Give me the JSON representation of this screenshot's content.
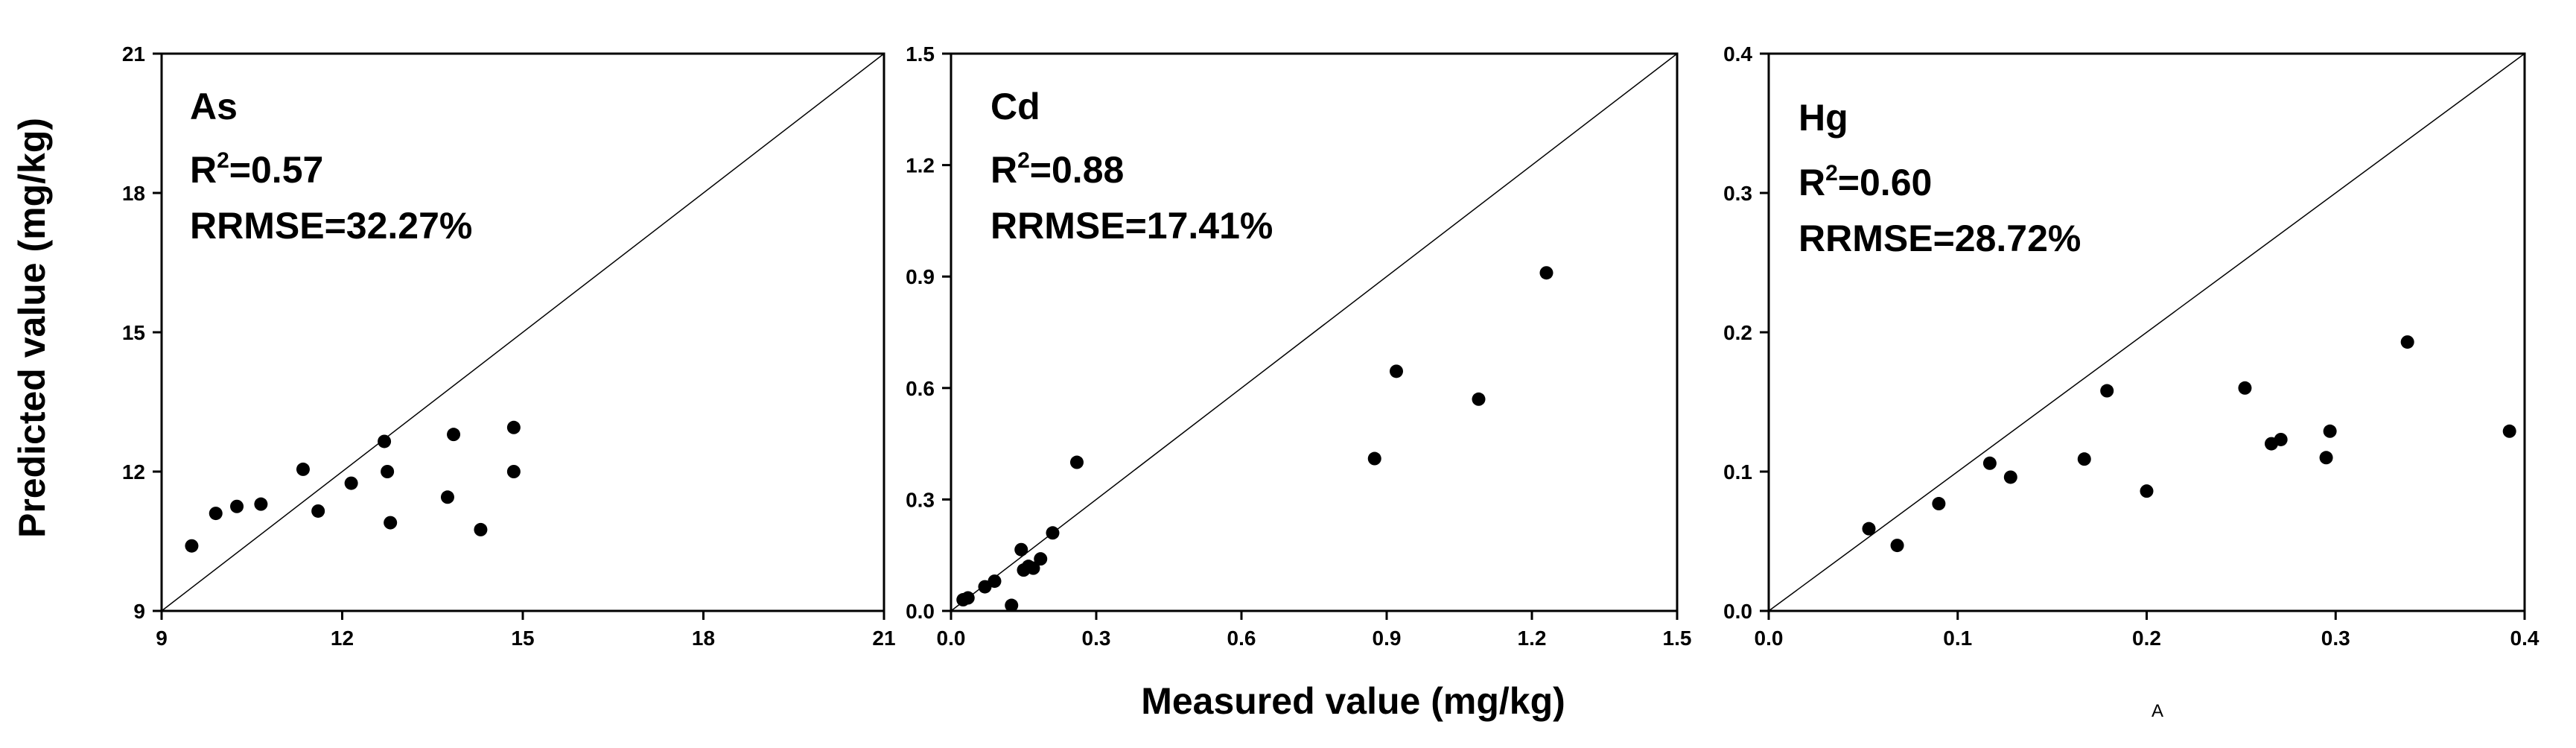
{
  "chart_data": [
    {
      "type": "scatter",
      "title": "As",
      "r2_label": "R",
      "r2_exp": "2",
      "r2_value": "=0.57",
      "rrmse": "RRMSE=32.27%",
      "xlim": [
        9,
        21
      ],
      "ylim": [
        9,
        21
      ],
      "xticks": [
        "9",
        "12",
        "15",
        "18",
        "21"
      ],
      "yticks": [
        "9",
        "12",
        "15",
        "18",
        "21"
      ],
      "points": [
        {
          "x": 9.5,
          "y": 10.4
        },
        {
          "x": 9.9,
          "y": 11.1
        },
        {
          "x": 10.25,
          "y": 11.25
        },
        {
          "x": 10.65,
          "y": 11.3
        },
        {
          "x": 11.35,
          "y": 12.05
        },
        {
          "x": 11.6,
          "y": 11.15
        },
        {
          "x": 12.15,
          "y": 11.75
        },
        {
          "x": 12.7,
          "y": 12.65
        },
        {
          "x": 12.75,
          "y": 12.0
        },
        {
          "x": 12.8,
          "y": 10.9
        },
        {
          "x": 13.75,
          "y": 11.45
        },
        {
          "x": 13.85,
          "y": 12.8
        },
        {
          "x": 14.3,
          "y": 10.75
        },
        {
          "x": 14.85,
          "y": 12.95
        },
        {
          "x": 14.85,
          "y": 12.0
        }
      ]
    },
    {
      "type": "scatter",
      "title": "Cd",
      "r2_label": "R",
      "r2_exp": "2",
      "r2_value": "=0.88",
      "rrmse": "RRMSE=17.41%",
      "xlim": [
        0,
        1.5
      ],
      "ylim": [
        0,
        1.5
      ],
      "xticks": [
        "0.0",
        "0.3",
        "0.6",
        "0.9",
        "1.2",
        "1.5"
      ],
      "yticks": [
        "0.0",
        "0.3",
        "0.6",
        "0.9",
        "1.2",
        "1.5"
      ],
      "points": [
        {
          "x": 0.025,
          "y": 0.03
        },
        {
          "x": 0.035,
          "y": 0.035
        },
        {
          "x": 0.07,
          "y": 0.065
        },
        {
          "x": 0.09,
          "y": 0.08
        },
        {
          "x": 0.125,
          "y": 0.015
        },
        {
          "x": 0.145,
          "y": 0.165
        },
        {
          "x": 0.15,
          "y": 0.11
        },
        {
          "x": 0.16,
          "y": 0.12
        },
        {
          "x": 0.17,
          "y": 0.115
        },
        {
          "x": 0.185,
          "y": 0.14
        },
        {
          "x": 0.21,
          "y": 0.21
        },
        {
          "x": 0.26,
          "y": 0.4
        },
        {
          "x": 0.875,
          "y": 0.41
        },
        {
          "x": 0.92,
          "y": 0.645
        },
        {
          "x": 1.09,
          "y": 0.57
        },
        {
          "x": 1.23,
          "y": 0.91
        }
      ]
    },
    {
      "type": "scatter",
      "title": "Hg",
      "r2_label": "R",
      "r2_exp": "2",
      "r2_value": "=0.60",
      "rrmse": "RRMSE=28.72%",
      "xlim": [
        0,
        0.4
      ],
      "ylim": [
        0,
        0.4
      ],
      "xticks": [
        "0.0",
        "0.1",
        "0.2",
        "0.3",
        "0.4"
      ],
      "yticks": [
        "0.0",
        "0.1",
        "0.2",
        "0.3",
        "0.4"
      ],
      "points": [
        {
          "x": 0.053,
          "y": 0.059
        },
        {
          "x": 0.068,
          "y": 0.047
        },
        {
          "x": 0.09,
          "y": 0.077
        },
        {
          "x": 0.117,
          "y": 0.106
        },
        {
          "x": 0.128,
          "y": 0.096
        },
        {
          "x": 0.167,
          "y": 0.109
        },
        {
          "x": 0.179,
          "y": 0.158
        },
        {
          "x": 0.2,
          "y": 0.086
        },
        {
          "x": 0.252,
          "y": 0.16
        },
        {
          "x": 0.266,
          "y": 0.12
        },
        {
          "x": 0.271,
          "y": 0.123
        },
        {
          "x": 0.295,
          "y": 0.11
        },
        {
          "x": 0.297,
          "y": 0.129
        },
        {
          "x": 0.338,
          "y": 0.193
        },
        {
          "x": 0.392,
          "y": 0.129
        }
      ]
    }
  ],
  "labels": {
    "ylabel": "Predicted value (mg/kg)",
    "xlabel": "Measured value (mg/kg)",
    "footnote": "A"
  }
}
